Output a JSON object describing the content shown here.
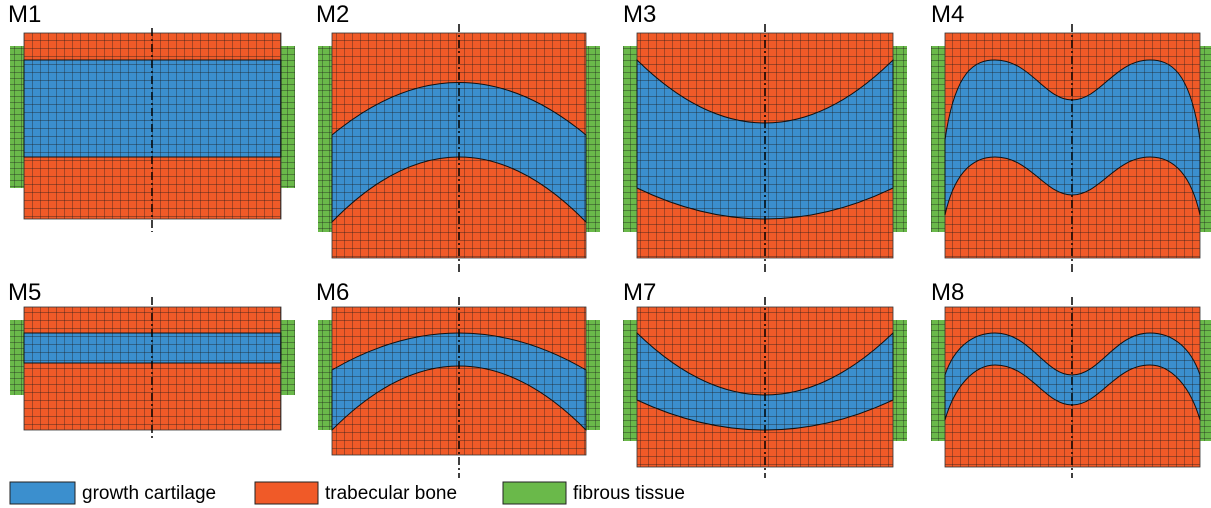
{
  "panels": [
    {
      "label": "M1"
    },
    {
      "label": "M2"
    },
    {
      "label": "M3"
    },
    {
      "label": "M4"
    },
    {
      "label": "M5"
    },
    {
      "label": "M6"
    },
    {
      "label": "M7"
    },
    {
      "label": "M8"
    }
  ],
  "legend": [
    {
      "label": "growth cartilage"
    },
    {
      "label": "trabecular bone"
    },
    {
      "label": "fibrous tissue"
    }
  ]
}
